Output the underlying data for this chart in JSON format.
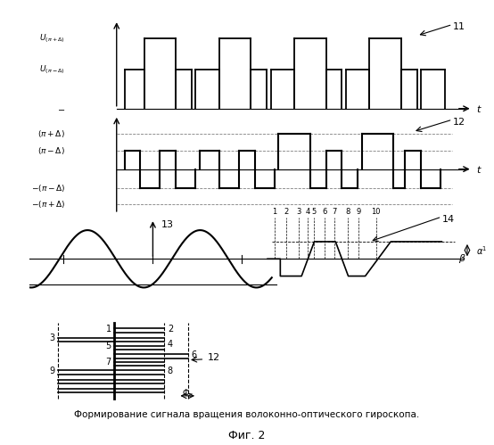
{
  "fig_width": 5.54,
  "fig_height": 4.99,
  "dpi": 100,
  "bg_color": "#ffffff",
  "caption": "Формирование сигнала вращения волоконно-оптического гироскопа.",
  "fig_label": "Фиг. 2",
  "label_11": "11",
  "label_12": "12",
  "label_13": "13",
  "label_14": "14",
  "label_beta": "β",
  "label_alpha": "α¹",
  "label_phi": "Φc",
  "ylabel_top1": "U_{(\\pi+\\Delta)}",
  "ylabel_top2": "U_{(\\pi-\\Delta)}",
  "ylabel_mid1": "(\\pi+\\Delta)",
  "ylabel_mid2": "(\\pi-\\Delta)",
  "ylabel_mid3": "-(\\pi-\\Delta)",
  "ylabel_mid4": "-(\\pi+\\Delta)"
}
